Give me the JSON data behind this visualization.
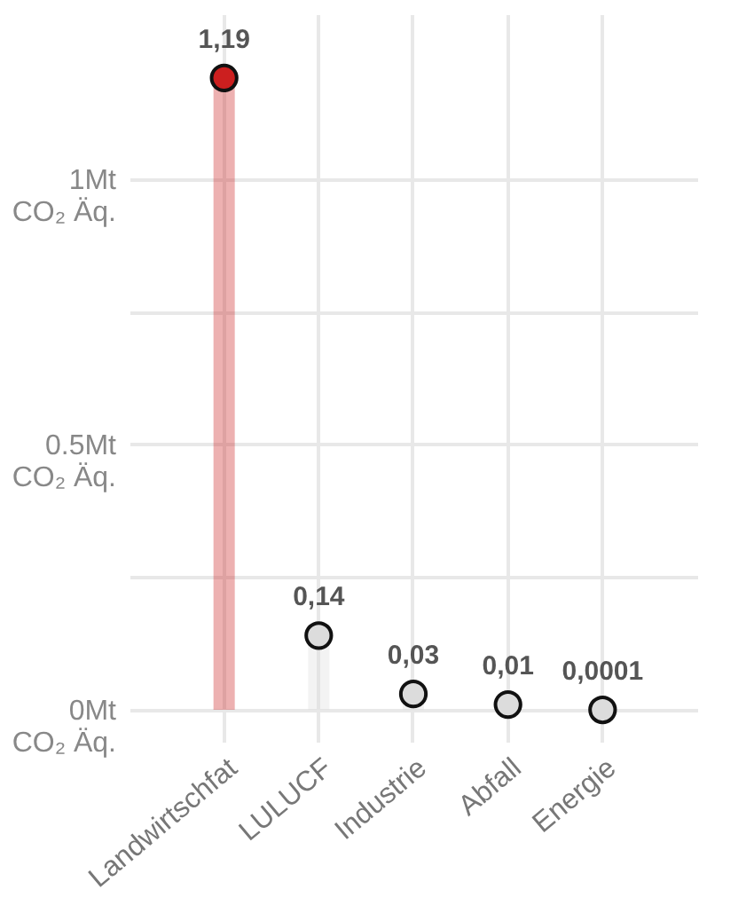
{
  "chart_data": {
    "type": "lollipop",
    "categories": [
      "Landwirtschfat",
      "LULUCF",
      "Industrie",
      "Abfall",
      "Energie"
    ],
    "values": [
      1.19,
      0.14,
      0.03,
      0.01,
      0.0001
    ],
    "colors": [
      "#cc1f1f",
      "#dcdcdc",
      "#dcdcdc",
      "#dcdcdc",
      "#dcdcdc"
    ],
    "value_labels": [
      "1,19",
      "0,14",
      "0,03",
      "0,01",
      "0,0001"
    ],
    "ylim": [
      -0.06,
      1.31
    ],
    "yticks": [
      {
        "value": 0,
        "label": "0Mt\nCO₂ Äq."
      },
      {
        "value": 0.25,
        "label": null
      },
      {
        "value": 0.5,
        "label": "0.5Mt\nCO₂ Äq."
      },
      {
        "value": 0.75,
        "label": null
      },
      {
        "value": 1,
        "label": "1Mt\nCO₂ Äq."
      }
    ],
    "grid": true,
    "marker": "circle"
  }
}
